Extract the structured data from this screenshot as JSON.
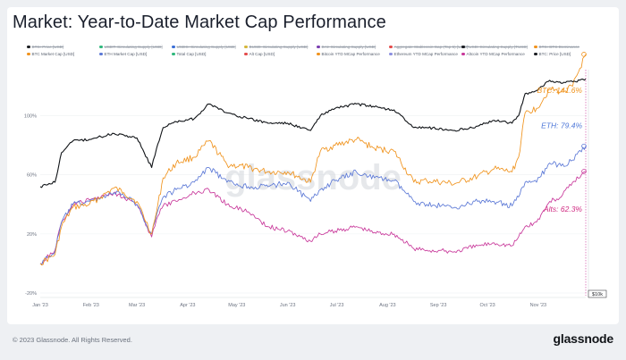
{
  "title": "Market: Year-to-Date Market Cap Performance",
  "footer": "© 2023 Glassnode. All Rights Reserved.",
  "brand": "glassnode",
  "watermark": "glassnode",
  "legend": [
    {
      "label": "BTC: Price [USD]",
      "color": "#1b1d22",
      "off": true
    },
    {
      "label": "USDT: Circulating Supply [USD]",
      "color": "#2fb87c",
      "off": true
    },
    {
      "label": "USDC: Circulating Supply [USD]",
      "color": "#3b6fd6",
      "off": true
    },
    {
      "label": "BUSD: Circulating Supply [USD]",
      "color": "#d4b63a",
      "off": true
    },
    {
      "label": "DAI: Circulating Supply [USD]",
      "color": "#7a3fb0",
      "off": true
    },
    {
      "label": "Aggregate Stablecoin Cap (Top 5) [USD]",
      "color": "#e34b4b",
      "off": true
    },
    {
      "label": "TUSD: Circulating Supply [TUSD]",
      "color": "#1b1d22",
      "off": true
    },
    {
      "label": "BTC: BTC Dominance",
      "color": "#f0931d",
      "off": true
    },
    {
      "label": "BTC Market Cap [USD]",
      "color": "#f0931d",
      "off": false
    },
    {
      "label": "ETH Market Cap [USD]",
      "color": "#5b78d6",
      "off": false
    },
    {
      "label": "Total Cap [USD]",
      "color": "#2fb87c",
      "off": false
    },
    {
      "label": "Alt Cap [USD]",
      "color": "#e34b4b",
      "off": false
    },
    {
      "label": "Bitcoin YTD MCap Performance",
      "color": "#f0931d",
      "off": false
    },
    {
      "label": "Ethereum YTD MCap Performance",
      "color": "#8c8fe0",
      "off": false
    },
    {
      "label": "Altcoin YTD MCap Performance",
      "color": "#c8379a",
      "off": false
    },
    {
      "label": "BTC: Price [USD]",
      "color": "#1b1d22",
      "off": false
    }
  ],
  "chart_data": {
    "type": "line",
    "title": "Market: Year-to-Date Market Cap Performance",
    "x_ticks": [
      "Jan '23",
      "Feb '23",
      "Mar '23",
      "Apr '23",
      "May '23",
      "Jun '23",
      "Jul '23",
      "Aug '23",
      "Sep '23",
      "Oct '23",
      "Nov '23"
    ],
    "y_ticks": [
      "100%",
      "60%",
      "20%",
      "-20%"
    ],
    "right_axis_label": "$10k",
    "x_range": [
      "2023-01-01",
      "2023-11-30"
    ],
    "y_range": [
      -20,
      130
    ],
    "end_labels": [
      {
        "text": "BTC: 141.6%",
        "color": "#f0931d"
      },
      {
        "text": "ETH: 79.4%",
        "color": "#4f78d8"
      },
      {
        "text": "Alts: 62.3%",
        "color": "#d02a82"
      }
    ],
    "series": [
      {
        "name": "Bitcoin YTD MCap Performance",
        "color": "#f0931d",
        "x": [
          "2023-01-01",
          "2023-01-10",
          "2023-01-14",
          "2023-01-21",
          "2023-01-31",
          "2023-02-15",
          "2023-02-21",
          "2023-03-01",
          "2023-03-10",
          "2023-03-13",
          "2023-03-17",
          "2023-03-25",
          "2023-04-05",
          "2023-04-14",
          "2023-04-25",
          "2023-05-08",
          "2023-05-20",
          "2023-06-01",
          "2023-06-15",
          "2023-06-21",
          "2023-06-30",
          "2023-07-13",
          "2023-07-24",
          "2023-08-05",
          "2023-08-17",
          "2023-08-25",
          "2023-09-11",
          "2023-09-25",
          "2023-10-05",
          "2023-10-16",
          "2023-10-20",
          "2023-10-24",
          "2023-10-31",
          "2023-11-08",
          "2023-11-15",
          "2023-11-22",
          "2023-11-30"
        ],
        "y": [
          0,
          6,
          25,
          38,
          40,
          51,
          48,
          42,
          20,
          35,
          58,
          68,
          72,
          83,
          67,
          65,
          62,
          62,
          55,
          76,
          80,
          84,
          78,
          76,
          55,
          56,
          54,
          59,
          64,
          62,
          72,
          102,
          105,
          118,
          116,
          120,
          141.6
        ]
      },
      {
        "name": "Ethereum YTD MCap Performance",
        "color": "#5b78d6",
        "x": [
          "2023-01-01",
          "2023-01-10",
          "2023-01-14",
          "2023-01-21",
          "2023-01-31",
          "2023-02-15",
          "2023-02-21",
          "2023-03-01",
          "2023-03-10",
          "2023-03-13",
          "2023-03-17",
          "2023-03-25",
          "2023-04-05",
          "2023-04-14",
          "2023-04-25",
          "2023-05-08",
          "2023-05-20",
          "2023-06-01",
          "2023-06-15",
          "2023-06-21",
          "2023-06-30",
          "2023-07-13",
          "2023-07-24",
          "2023-08-05",
          "2023-08-17",
          "2023-08-25",
          "2023-09-11",
          "2023-09-25",
          "2023-10-05",
          "2023-10-16",
          "2023-10-20",
          "2023-10-24",
          "2023-10-31",
          "2023-11-08",
          "2023-11-15",
          "2023-11-22",
          "2023-11-30"
        ],
        "y": [
          0,
          8,
          28,
          40,
          42,
          48,
          46,
          40,
          20,
          33,
          45,
          50,
          55,
          65,
          55,
          52,
          52,
          55,
          42,
          50,
          56,
          62,
          58,
          56,
          42,
          40,
          38,
          42,
          42,
          39,
          45,
          55,
          55,
          68,
          66,
          70,
          79.4
        ]
      },
      {
        "name": "Altcoin YTD MCap Performance",
        "color": "#c8379a",
        "x": [
          "2023-01-01",
          "2023-01-10",
          "2023-01-14",
          "2023-01-21",
          "2023-01-31",
          "2023-02-15",
          "2023-02-21",
          "2023-03-01",
          "2023-03-10",
          "2023-03-13",
          "2023-03-17",
          "2023-03-25",
          "2023-04-05",
          "2023-04-14",
          "2023-04-25",
          "2023-05-08",
          "2023-05-20",
          "2023-06-01",
          "2023-06-15",
          "2023-06-21",
          "2023-06-30",
          "2023-07-13",
          "2023-07-24",
          "2023-08-05",
          "2023-08-17",
          "2023-08-25",
          "2023-09-11",
          "2023-09-25",
          "2023-10-05",
          "2023-10-16",
          "2023-10-20",
          "2023-10-24",
          "2023-10-31",
          "2023-11-08",
          "2023-11-15",
          "2023-11-22",
          "2023-11-30"
        ],
        "y": [
          0,
          9,
          28,
          40,
          43,
          48,
          45,
          40,
          18,
          30,
          39,
          42,
          48,
          50,
          40,
          35,
          25,
          22,
          15,
          20,
          22,
          25,
          21,
          20,
          10,
          9,
          8,
          12,
          14,
          12,
          18,
          25,
          28,
          42,
          45,
          55,
          62.3
        ]
      },
      {
        "name": "BTC: Price [USD]",
        "color": "#111418",
        "x": [
          "2023-01-01",
          "2023-01-10",
          "2023-01-14",
          "2023-01-21",
          "2023-01-31",
          "2023-02-15",
          "2023-02-21",
          "2023-03-01",
          "2023-03-10",
          "2023-03-13",
          "2023-03-17",
          "2023-03-25",
          "2023-04-05",
          "2023-04-14",
          "2023-04-25",
          "2023-05-08",
          "2023-05-20",
          "2023-06-01",
          "2023-06-15",
          "2023-06-21",
          "2023-06-30",
          "2023-07-13",
          "2023-07-24",
          "2023-08-05",
          "2023-08-17",
          "2023-08-25",
          "2023-09-11",
          "2023-09-25",
          "2023-10-05",
          "2023-10-16",
          "2023-10-20",
          "2023-10-24",
          "2023-10-31",
          "2023-11-08",
          "2023-11-15",
          "2023-11-22",
          "2023-11-30"
        ],
        "y": [
          52,
          55,
          75,
          83,
          84,
          88,
          87,
          85,
          65,
          78,
          92,
          96,
          98,
          108,
          102,
          98,
          95,
          95,
          90,
          100,
          105,
          108,
          106,
          104,
          92,
          92,
          90,
          93,
          97,
          95,
          100,
          115,
          117,
          124,
          122,
          123,
          125
        ]
      }
    ]
  }
}
